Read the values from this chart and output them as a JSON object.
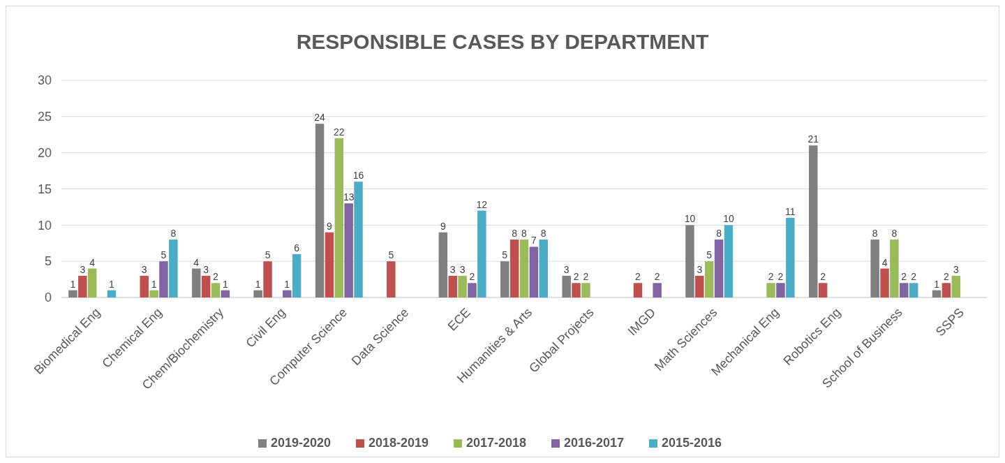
{
  "chart_data": {
    "type": "bar",
    "title": "RESPONSIBLE CASES BY DEPARTMENT",
    "categories": [
      "Biomedical Eng",
      "Chemical Eng",
      "Chem/Biochemistry",
      "Civil Eng",
      "Computer Science",
      "Data Science",
      "ECE",
      "Humanities & Arts",
      "Global Projects",
      "IMGD",
      "Math Sciences",
      "Mechanical Eng",
      "Robotics Eng",
      "School of Business",
      "SSPS"
    ],
    "series": [
      {
        "name": "2019-2020",
        "color": "#7f7f7f",
        "values": [
          1,
          null,
          4,
          1,
          24,
          null,
          9,
          5,
          3,
          null,
          10,
          null,
          21,
          8,
          1
        ]
      },
      {
        "name": "2018-2019",
        "color": "#c0504d",
        "values": [
          3,
          3,
          3,
          5,
          9,
          5,
          3,
          8,
          2,
          2,
          3,
          null,
          2,
          4,
          2
        ]
      },
      {
        "name": "2017-2018",
        "color": "#9bbb59",
        "values": [
          4,
          1,
          2,
          null,
          22,
          null,
          3,
          8,
          2,
          null,
          5,
          2,
          null,
          8,
          3
        ]
      },
      {
        "name": "2016-2017",
        "color": "#8064a2",
        "values": [
          null,
          5,
          1,
          1,
          13,
          null,
          2,
          7,
          null,
          2,
          8,
          2,
          null,
          2,
          null
        ]
      },
      {
        "name": "2015-2016",
        "color": "#4bacc6",
        "values": [
          1,
          8,
          null,
          6,
          16,
          null,
          12,
          8,
          null,
          null,
          10,
          11,
          null,
          2,
          null
        ]
      }
    ],
    "ylim": [
      0,
      30
    ],
    "yticks": [
      0,
      5,
      10,
      15,
      20,
      25,
      30
    ],
    "grid": "y",
    "legend": "bottom",
    "data_labels": true
  }
}
